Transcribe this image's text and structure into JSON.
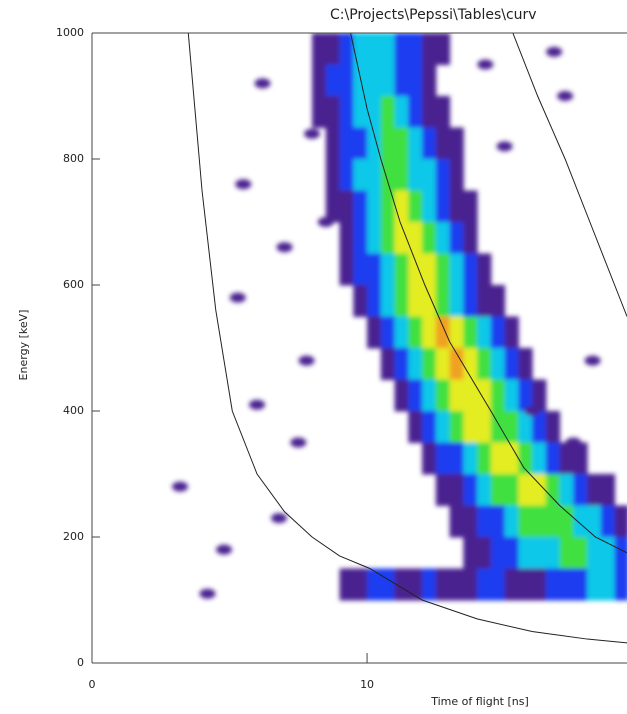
{
  "chart_data": {
    "type": "heatmap",
    "title": "C:\\Projects\\Pepssi\\Tables\\curv",
    "x_label": "Time of flight [ns]",
    "y_label": "Energy [keV]",
    "xlim": [
      0,
      19.45
    ],
    "ylim": [
      0,
      1000
    ],
    "xticks": [
      0,
      10
    ],
    "yticks": [
      0,
      200,
      400,
      600,
      800,
      1000
    ],
    "cell_width": 0.5,
    "cell_height": 50,
    "level_colors": [
      "#4a2290",
      "#1e3cf0",
      "#10c8e8",
      "#40e040",
      "#e4ec20",
      "#f0a020"
    ],
    "rows": [
      {
        "e": 950,
        "t0": 8.0,
        "levels": [
          1,
          1,
          2,
          3,
          3,
          3,
          2,
          2,
          1,
          1
        ]
      },
      {
        "e": 900,
        "t0": 8.0,
        "levels": [
          1,
          2,
          2,
          3,
          3,
          3,
          2,
          2,
          1
        ]
      },
      {
        "e": 850,
        "t0": 8.0,
        "levels": [
          1,
          1,
          2,
          3,
          3,
          4,
          3,
          2,
          1,
          1
        ]
      },
      {
        "e": 800,
        "t0": 8.5,
        "levels": [
          1,
          2,
          2,
          3,
          4,
          4,
          3,
          2,
          1,
          1
        ]
      },
      {
        "e": 750,
        "t0": 8.5,
        "levels": [
          1,
          2,
          3,
          3,
          4,
          4,
          3,
          3,
          2,
          1
        ]
      },
      {
        "e": 700,
        "t0": 8.5,
        "levels": [
          1,
          1,
          2,
          3,
          4,
          5,
          4,
          3,
          2,
          1,
          1
        ]
      },
      {
        "e": 650,
        "t0": 9.0,
        "levels": [
          1,
          2,
          3,
          4,
          5,
          5,
          4,
          3,
          2,
          1
        ]
      },
      {
        "e": 600,
        "t0": 9.0,
        "levels": [
          1,
          2,
          2,
          3,
          4,
          5,
          5,
          4,
          3,
          2,
          1
        ]
      },
      {
        "e": 550,
        "t0": 9.5,
        "levels": [
          1,
          2,
          3,
          4,
          5,
          5,
          4,
          3,
          2,
          1,
          1
        ]
      },
      {
        "e": 500,
        "t0": 10.0,
        "levels": [
          1,
          2,
          3,
          4,
          5,
          6,
          5,
          4,
          3,
          2,
          1
        ]
      },
      {
        "e": 450,
        "t0": 10.5,
        "levels": [
          1,
          2,
          3,
          4,
          5,
          6,
          5,
          4,
          3,
          2,
          1
        ]
      },
      {
        "e": 400,
        "t0": 11.0,
        "levels": [
          1,
          2,
          3,
          4,
          5,
          5,
          5,
          4,
          3,
          2,
          1
        ]
      },
      {
        "e": 350,
        "t0": 11.5,
        "levels": [
          1,
          2,
          3,
          4,
          5,
          5,
          4,
          4,
          3,
          2,
          1
        ]
      },
      {
        "e": 300,
        "t0": 12.0,
        "levels": [
          1,
          2,
          2,
          3,
          4,
          5,
          5,
          4,
          3,
          2,
          1,
          1
        ]
      },
      {
        "e": 250,
        "t0": 12.5,
        "levels": [
          1,
          1,
          2,
          3,
          4,
          4,
          5,
          5,
          4,
          3,
          2,
          1,
          1
        ]
      },
      {
        "e": 200,
        "t0": 13.0,
        "levels": [
          1,
          1,
          2,
          2,
          3,
          4,
          4,
          4,
          4,
          3,
          3,
          2,
          1
        ]
      },
      {
        "e": 150,
        "t0": 13.5,
        "levels": [
          1,
          1,
          2,
          2,
          3,
          3,
          3,
          4,
          4,
          3,
          3,
          2
        ]
      },
      {
        "e": 100,
        "t0": 9.0,
        "levels": [
          1,
          1,
          2,
          2,
          1,
          1,
          2,
          1,
          1,
          1,
          2,
          2,
          1,
          1,
          1,
          2,
          2,
          2,
          3,
          3,
          2
        ]
      }
    ],
    "speckles": {
      "x": [
        3.2,
        4.2,
        5.3,
        6.0,
        4.8,
        7.0,
        8.5,
        7.5,
        8.0,
        6.2,
        14.3,
        16.8,
        17.2,
        15.0,
        16.0,
        17.5,
        18.2,
        6.8,
        7.8,
        5.5
      ],
      "y": [
        280,
        110,
        580,
        410,
        180,
        660,
        700,
        350,
        840,
        920,
        950,
        970,
        900,
        820,
        400,
        350,
        480,
        230,
        480,
        760
      ]
    },
    "curves": [
      {
        "x": [
          3.5,
          4.0,
          4.5,
          5.1,
          6.0,
          7.0,
          8.0,
          9.0,
          10.1,
          12,
          14,
          16,
          18,
          19.45
        ],
        "y": [
          1000,
          750,
          560,
          400,
          300,
          240,
          200,
          170,
          150,
          100,
          70,
          50,
          38,
          32
        ]
      },
      {
        "x": [
          9.4,
          10.0,
          10.5,
          11.2,
          12.1,
          13.0,
          14.5,
          15.7,
          17.0,
          18.3,
          19.45
        ],
        "y": [
          1000,
          880,
          800,
          700,
          600,
          510,
          400,
          310,
          250,
          200,
          175
        ]
      },
      {
        "x": [
          15.3,
          16.2,
          17.2,
          18.1,
          19.0,
          19.45
        ],
        "y": [
          1000,
          900,
          800,
          700,
          600,
          550
        ]
      }
    ]
  }
}
